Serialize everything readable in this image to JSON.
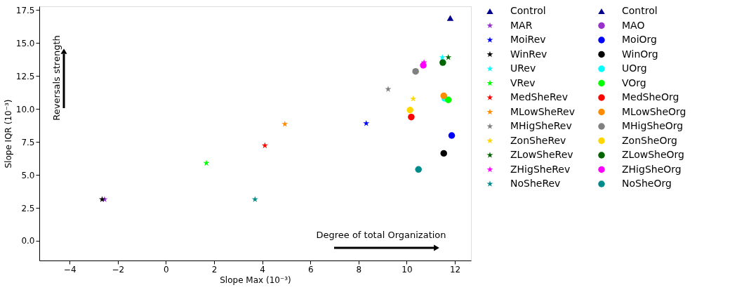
{
  "chart_data": {
    "type": "scatter",
    "xlabel": "Slope Max (10⁻³)",
    "ylabel": "Slope IQR (10⁻³)",
    "xlim": [
      -5.26,
      12.67
    ],
    "ylim": [
      -1.49,
      17.77
    ],
    "xticks": [
      {
        "value": -4,
        "label": "−4"
      },
      {
        "value": -2,
        "label": "−2"
      },
      {
        "value": 0,
        "label": "0"
      },
      {
        "value": 2,
        "label": "2"
      },
      {
        "value": 4,
        "label": "4"
      },
      {
        "value": 6,
        "label": "6"
      },
      {
        "value": 8,
        "label": "8"
      },
      {
        "value": 10,
        "label": "10"
      },
      {
        "value": 12,
        "label": "12"
      }
    ],
    "yticks": [
      {
        "value": 0,
        "label": "0.0"
      },
      {
        "value": 2.5,
        "label": "2.5"
      },
      {
        "value": 5,
        "label": "5.0"
      },
      {
        "value": 7.5,
        "label": "7.5"
      },
      {
        "value": 10,
        "label": "10.0"
      },
      {
        "value": 12.5,
        "label": "12.5"
      },
      {
        "value": 15,
        "label": "15.0"
      },
      {
        "value": 17.5,
        "label": "17.5"
      }
    ],
    "grid": false,
    "legend": "right",
    "annotations": [
      "Reversals strength",
      "Degree of total Organization"
    ],
    "series": [
      {
        "name": "Control",
        "color": "#00008b",
        "marker": "triangle",
        "x": [
          11.81
        ],
        "values": [
          16.88
        ]
      },
      {
        "name": "MAR",
        "color": "#9932cc",
        "marker": "star",
        "x": [
          -2.55
        ],
        "values": [
          3.14
        ]
      },
      {
        "name": "MoiRev",
        "color": "#0000ff",
        "marker": "star",
        "x": [
          8.32
        ],
        "values": [
          8.9
        ]
      },
      {
        "name": "WinRev",
        "color": "#000000",
        "marker": "star",
        "x": [
          -2.65
        ],
        "values": [
          3.14
        ]
      },
      {
        "name": "URev",
        "color": "#00ffff",
        "marker": "star",
        "x": [
          11.48
        ],
        "values": [
          13.9
        ]
      },
      {
        "name": "VRev",
        "color": "#00ff00",
        "marker": "star",
        "x": [
          1.68
        ],
        "values": [
          5.89
        ]
      },
      {
        "name": "MedSheRev",
        "color": "#ff0000",
        "marker": "star",
        "x": [
          4.11
        ],
        "values": [
          7.22
        ]
      },
      {
        "name": "MLowSheRev",
        "color": "#ff8c00",
        "marker": "star",
        "x": [
          4.94
        ],
        "values": [
          8.85
        ]
      },
      {
        "name": "MHigSheRev",
        "color": "#808080",
        "marker": "star",
        "x": [
          9.23
        ],
        "values": [
          11.49
        ]
      },
      {
        "name": "ZonSheRev",
        "color": "#ffd700",
        "marker": "star",
        "x": [
          10.27
        ],
        "values": [
          10.76
        ]
      },
      {
        "name": "ZLowSheRev",
        "color": "#006400",
        "marker": "star",
        "x": [
          11.73
        ],
        "values": [
          13.9
        ]
      },
      {
        "name": "ZHigSheRev",
        "color": "#ff00ff",
        "marker": "star",
        "x": [
          10.72
        ],
        "values": [
          13.51
        ]
      },
      {
        "name": "NoSheRev",
        "color": "#008b8b",
        "marker": "star",
        "x": [
          3.7
        ],
        "values": [
          3.14
        ]
      },
      {
        "name": "Control",
        "color": "#00008b",
        "marker": "triangle",
        "x": [
          null
        ],
        "values": [
          null
        ]
      },
      {
        "name": "MAO",
        "color": "#9932cc",
        "marker": "circle",
        "x": [
          null
        ],
        "values": [
          null
        ]
      },
      {
        "name": "MoiOrg",
        "color": "#0000ff",
        "marker": "circle",
        "x": [
          11.87
        ],
        "values": [
          7.98
        ]
      },
      {
        "name": "WinOrg",
        "color": "#000000",
        "marker": "circle",
        "x": [
          11.54
        ],
        "values": [
          6.63
        ]
      },
      {
        "name": "UOrg",
        "color": "#00ffff",
        "marker": "circle",
        "x": [
          11.58
        ],
        "values": [
          10.8
        ]
      },
      {
        "name": "VOrg",
        "color": "#00ff00",
        "marker": "circle",
        "x": [
          11.73
        ],
        "values": [
          10.68
        ]
      },
      {
        "name": "MedSheOrg",
        "color": "#ff0000",
        "marker": "circle",
        "x": [
          10.19
        ],
        "values": [
          9.38
        ]
      },
      {
        "name": "MLowSheOrg",
        "color": "#ff8c00",
        "marker": "circle",
        "x": [
          11.54
        ],
        "values": [
          10.99
        ]
      },
      {
        "name": "MHigSheOrg",
        "color": "#808080",
        "marker": "circle",
        "x": [
          10.37
        ],
        "values": [
          12.84
        ]
      },
      {
        "name": "ZonSheOrg",
        "color": "#ffd700",
        "marker": "circle",
        "x": [
          10.14
        ],
        "values": [
          9.91
        ]
      },
      {
        "name": "ZLowSheOrg",
        "color": "#006400",
        "marker": "circle",
        "x": [
          11.5
        ],
        "values": [
          13.51
        ]
      },
      {
        "name": "ZHigSheOrg",
        "color": "#ff00ff",
        "marker": "circle",
        "x": [
          10.69
        ],
        "values": [
          13.3
        ]
      },
      {
        "name": "NoSheOrg",
        "color": "#008b8b",
        "marker": "circle",
        "x": [
          10.49
        ],
        "values": [
          5.41
        ]
      }
    ]
  }
}
